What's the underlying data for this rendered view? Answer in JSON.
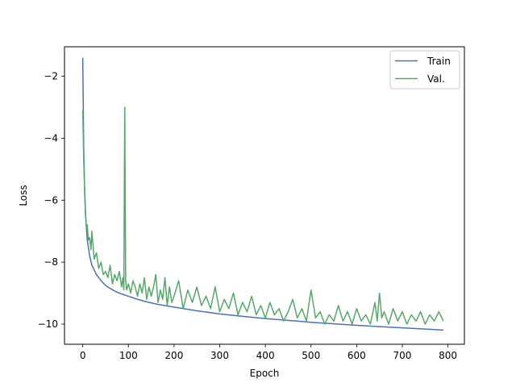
{
  "chart_data": {
    "type": "line",
    "title": "",
    "xlabel": "Epoch",
    "ylabel": "Loss",
    "xlim": [
      -40,
      836
    ],
    "ylim": [
      -10.65,
      -1.05
    ],
    "xticks": [
      0,
      100,
      200,
      300,
      400,
      500,
      600,
      700,
      800
    ],
    "yticks": [
      -2,
      -4,
      -6,
      -8,
      -10
    ],
    "xtick_labels": [
      "0",
      "100",
      "200",
      "300",
      "400",
      "500",
      "600",
      "700",
      "800"
    ],
    "ytick_labels": [
      "−2",
      "−4",
      "−6",
      "−8",
      "−10"
    ],
    "grid": false,
    "legend": {
      "placement": "top-right",
      "entries": [
        "Train",
        "Val."
      ]
    },
    "series": [
      {
        "name": "Train",
        "color": "#4c72b0",
        "x": [
          0,
          2,
          4,
          6,
          8,
          10,
          15,
          20,
          30,
          40,
          50,
          60,
          70,
          80,
          90,
          100,
          120,
          140,
          160,
          180,
          200,
          250,
          300,
          350,
          400,
          450,
          500,
          550,
          600,
          650,
          700,
          750,
          790
        ],
        "y": [
          -1.4,
          -4.2,
          -5.6,
          -6.4,
          -6.9,
          -7.3,
          -7.8,
          -8.1,
          -8.4,
          -8.6,
          -8.75,
          -8.85,
          -8.93,
          -9.0,
          -9.05,
          -9.1,
          -9.2,
          -9.28,
          -9.35,
          -9.4,
          -9.45,
          -9.57,
          -9.67,
          -9.75,
          -9.82,
          -9.88,
          -9.94,
          -9.99,
          -10.04,
          -10.08,
          -10.12,
          -10.16,
          -10.19
        ]
      },
      {
        "name": "Val.",
        "color": "#55a868",
        "x": [
          0,
          2,
          4,
          6,
          8,
          10,
          12,
          15,
          18,
          20,
          25,
          30,
          35,
          40,
          45,
          50,
          55,
          60,
          65,
          70,
          75,
          80,
          85,
          88,
          90,
          92,
          94,
          96,
          100,
          105,
          110,
          115,
          120,
          125,
          130,
          135,
          140,
          145,
          150,
          155,
          160,
          165,
          170,
          175,
          180,
          185,
          190,
          195,
          200,
          210,
          220,
          230,
          240,
          250,
          260,
          270,
          280,
          290,
          300,
          310,
          320,
          330,
          340,
          350,
          360,
          370,
          380,
          390,
          400,
          410,
          420,
          430,
          440,
          450,
          460,
          470,
          480,
          490,
          500,
          510,
          520,
          530,
          540,
          550,
          560,
          570,
          580,
          590,
          600,
          610,
          620,
          630,
          640,
          645,
          650,
          655,
          660,
          670,
          680,
          690,
          700,
          710,
          720,
          730,
          740,
          750,
          760,
          770,
          780,
          790
        ],
        "y": [
          -3.1,
          -4.6,
          -5.7,
          -6.5,
          -6.9,
          -6.8,
          -7.3,
          -7.2,
          -7.6,
          -7.0,
          -7.9,
          -7.7,
          -8.2,
          -8.0,
          -8.4,
          -8.3,
          -8.5,
          -8.1,
          -8.7,
          -8.4,
          -8.6,
          -8.3,
          -8.8,
          -8.5,
          -8.9,
          -3.0,
          -8.6,
          -8.9,
          -8.7,
          -9.0,
          -8.6,
          -8.8,
          -9.1,
          -8.7,
          -9.0,
          -8.5,
          -9.2,
          -8.8,
          -9.1,
          -8.8,
          -8.4,
          -9.3,
          -8.9,
          -9.2,
          -8.5,
          -9.4,
          -8.8,
          -9.3,
          -9.1,
          -8.6,
          -9.5,
          -8.9,
          -9.3,
          -8.8,
          -9.4,
          -9.1,
          -9.5,
          -8.8,
          -9.6,
          -9.2,
          -9.5,
          -9.0,
          -9.7,
          -9.3,
          -9.6,
          -9.1,
          -9.7,
          -9.4,
          -9.8,
          -9.3,
          -9.7,
          -9.5,
          -9.9,
          -9.6,
          -9.2,
          -9.8,
          -9.5,
          -9.9,
          -8.9,
          -9.8,
          -9.6,
          -10.0,
          -9.7,
          -9.9,
          -9.4,
          -9.9,
          -9.6,
          -10.0,
          -9.5,
          -9.9,
          -9.7,
          -10.0,
          -9.3,
          -9.9,
          -9.0,
          -9.8,
          -9.6,
          -10.0,
          -9.5,
          -9.9,
          -9.6,
          -10.0,
          -9.7,
          -9.9,
          -9.6,
          -10.0,
          -9.7,
          -9.9,
          -9.6,
          -9.9
        ]
      }
    ]
  }
}
